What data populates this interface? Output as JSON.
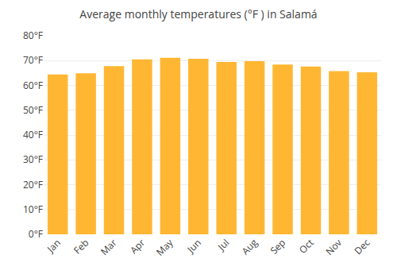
{
  "chart_data": {
    "type": "bar",
    "title": "Average monthly temperatures (°F ) in Salamá",
    "categories": [
      "Jan",
      "Feb",
      "Mar",
      "Apr",
      "May",
      "Jun",
      "Jul",
      "Aug",
      "Sep",
      "Oct",
      "Nov",
      "Dec"
    ],
    "values": [
      64.4,
      64.9,
      67.8,
      70.5,
      71.1,
      70.7,
      69.4,
      69.8,
      68.4,
      67.6,
      65.8,
      65.3
    ],
    "color": "#FFB733",
    "ylim": [
      0,
      80
    ],
    "yticks": [
      {
        "value": 0,
        "label": "0°F"
      },
      {
        "value": 10,
        "label": "10°F"
      },
      {
        "value": 20,
        "label": "20°F"
      },
      {
        "value": 30,
        "label": "30°F"
      },
      {
        "value": 40,
        "label": "40°F"
      },
      {
        "value": 50,
        "label": "50°F"
      },
      {
        "value": 60,
        "label": "60°F"
      },
      {
        "value": 70,
        "label": "70°F"
      },
      {
        "value": 80,
        "label": "80°F"
      }
    ],
    "grid": true
  }
}
